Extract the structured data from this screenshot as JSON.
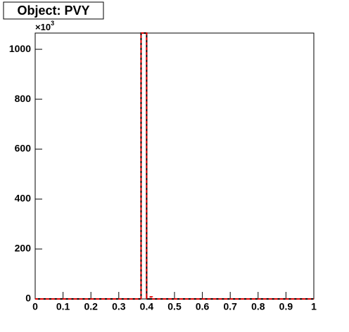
{
  "chart_data": {
    "type": "histogram",
    "title": "Object: PVY",
    "axis_multiplier": "×10",
    "axis_multiplier_exp": "3",
    "bins": [
      0,
      0.02,
      0.04,
      0.06,
      0.08,
      0.1,
      0.12,
      0.14,
      0.16,
      0.18,
      0.2,
      0.22,
      0.24,
      0.26,
      0.28,
      0.3,
      0.32,
      0.34,
      0.36,
      0.38,
      0.4,
      0.42,
      0.44,
      0.46,
      0.48,
      0.5,
      0.52,
      0.54,
      0.56,
      0.58,
      0.6,
      0.62,
      0.64,
      0.66,
      0.68,
      0.7,
      0.72,
      0.74,
      0.76,
      0.78,
      0.8,
      0.82,
      0.84,
      0.86,
      0.88,
      0.9,
      0.92,
      0.94,
      0.96,
      0.98,
      1
    ],
    "series": [
      {
        "color": "#000000",
        "dashed": false,
        "values": [
          0,
          0,
          0,
          0,
          0,
          0,
          0,
          0,
          0,
          0,
          0,
          0,
          0,
          0,
          0,
          0,
          0,
          0,
          0,
          1065,
          0,
          0,
          0,
          0,
          0,
          0,
          0,
          0,
          0,
          0,
          0,
          0,
          0,
          0,
          0,
          0,
          0,
          0,
          0,
          0,
          0,
          0,
          0,
          0,
          0,
          0,
          0,
          0,
          0,
          0
        ]
      },
      {
        "color": "#e00000",
        "dashed": true,
        "values": [
          0,
          0,
          0,
          0,
          0,
          0,
          0,
          0,
          0,
          0,
          0,
          0,
          0,
          0,
          0,
          0,
          0,
          0,
          0,
          1065,
          8,
          0,
          0,
          0,
          0,
          0,
          0,
          0,
          0,
          0,
          0,
          0,
          0,
          0,
          0,
          0,
          0,
          0,
          0,
          0,
          0,
          0,
          0,
          0,
          0,
          0,
          0,
          0,
          0,
          0
        ]
      }
    ],
    "xlim": [
      0,
      1
    ],
    "xticks": [
      0,
      0.1,
      0.2,
      0.3,
      0.4,
      0.5,
      0.6,
      0.7,
      0.8,
      0.9,
      1
    ],
    "ylim": [
      0,
      1065
    ],
    "yticks": [
      0,
      200,
      400,
      600,
      800,
      1000
    ]
  }
}
